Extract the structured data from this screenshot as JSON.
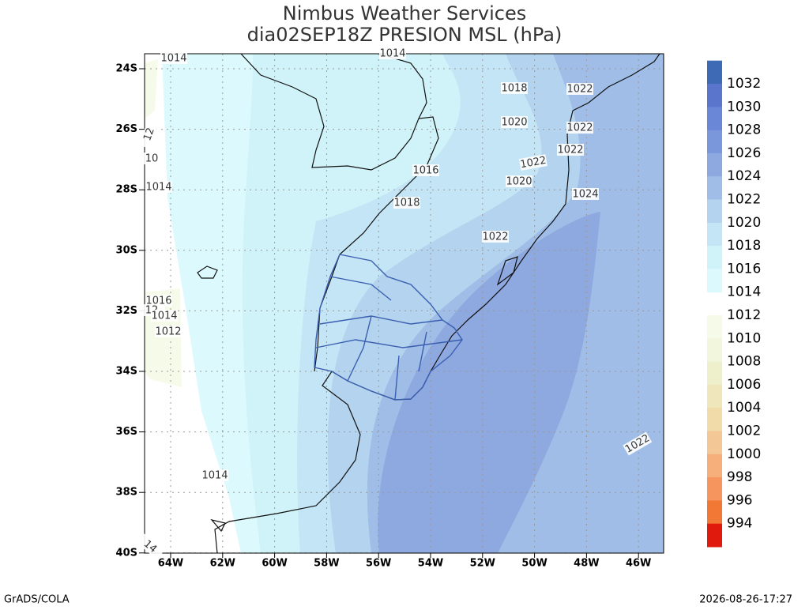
{
  "title": "Nimbus Weather Services",
  "subtitle": "dia02SEP18Z PRESION MSL (hPa)",
  "lat_labels": [
    "24S",
    "26S",
    "28S",
    "30S",
    "32S",
    "34S",
    "36S",
    "38S",
    "40S"
  ],
  "lon_labels": [
    "64W",
    "62W",
    "60W",
    "58W",
    "56W",
    "54W",
    "52W",
    "50W",
    "48W",
    "46W"
  ],
  "contour_labels": [
    "1014",
    "1014",
    "1018",
    "1022",
    "1020",
    "1022",
    "1022",
    "1022",
    "1016",
    "1020",
    "1024",
    "1018",
    "1022",
    "1014",
    "10",
    "12",
    "1016",
    "12",
    "1014",
    "1012",
    "1014",
    "1022",
    "14"
  ],
  "colorbar": {
    "labels": [
      "1032",
      "1030",
      "1028",
      "1026",
      "1024",
      "1022",
      "1020",
      "1018",
      "1016",
      "1014",
      "1012",
      "1010",
      "1008",
      "1006",
      "1004",
      "1002",
      "1000",
      "998",
      "996",
      "994"
    ],
    "colors": [
      "#3d69b5",
      "#5a76cc",
      "#6a86d6",
      "#7b97dc",
      "#8ea8e0",
      "#9fbde6",
      "#b3d3ee",
      "#c4e5f5",
      "#d0f3f9",
      "#dcfafd",
      "#f6fbe9",
      "#f2f6dc",
      "#eef0cc",
      "#f0e6bb",
      "#f1dba9",
      "#f4c797",
      "#f6ae7b",
      "#f6955e",
      "#f27835",
      "#e01a0c"
    ]
  },
  "footer": {
    "left": "GrADS/COLA",
    "right": "2026-08-26-17:27"
  }
}
